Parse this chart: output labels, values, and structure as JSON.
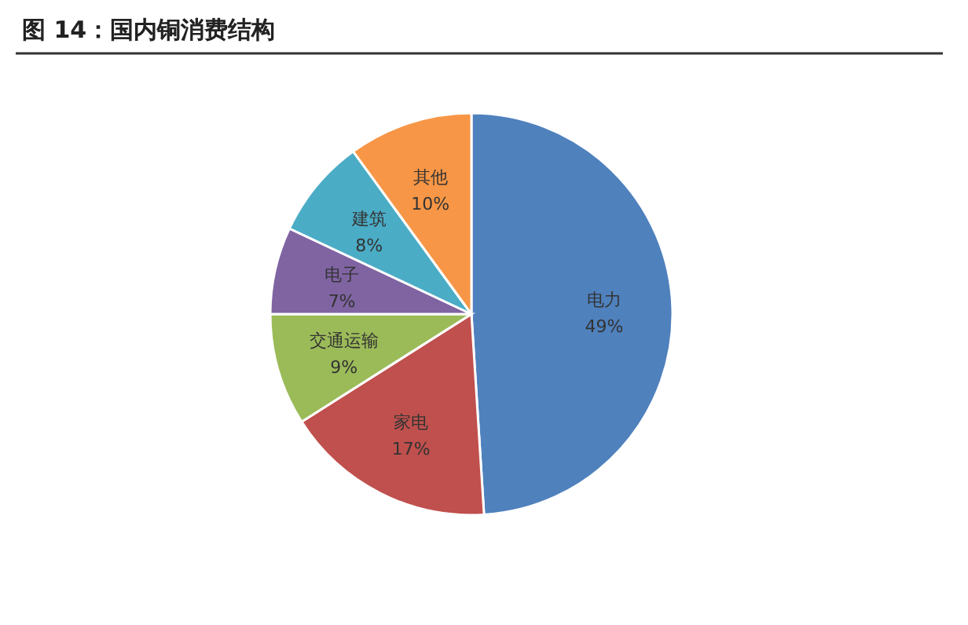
{
  "chart_data": {
    "type": "pie",
    "title": "图 14：国内铜消费结构",
    "categories": [
      "电力",
      "家电",
      "交通运输",
      "电子",
      "建筑",
      "其他"
    ],
    "values": [
      49,
      17,
      9,
      7,
      8,
      10
    ],
    "colors": [
      "#4f81bd",
      "#c0504d",
      "#9bbb59",
      "#8064a2",
      "#4bacc6",
      "#f79646"
    ],
    "value_labels": [
      "49%",
      "17%",
      "9%",
      "7%",
      "8%",
      "10%"
    ]
  }
}
